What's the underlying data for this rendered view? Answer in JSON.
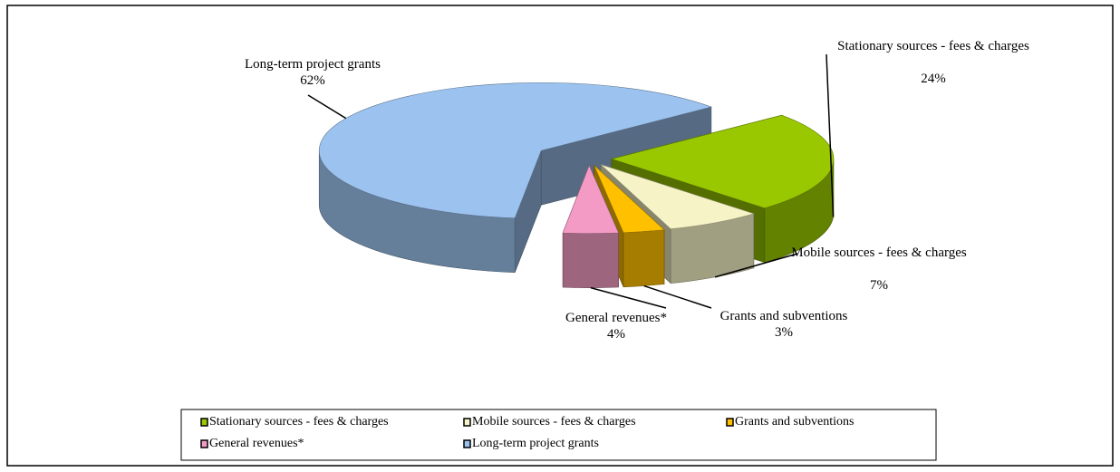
{
  "chart_data": {
    "type": "pie",
    "categories": [
      "Stationary sources - fees & charges",
      "Mobile sources - fees & charges",
      "Grants and subventions",
      "General revenues*",
      "Long-term project grants"
    ],
    "values": [
      24,
      7,
      3,
      4,
      62
    ],
    "value_labels": [
      "24%",
      "7%",
      "3%",
      "4%",
      "62%"
    ],
    "colors": [
      "#99c800",
      "#f6f4c6",
      "#ffc000",
      "#f39bc4",
      "#9cc3ef"
    ],
    "legend": "bottom"
  }
}
